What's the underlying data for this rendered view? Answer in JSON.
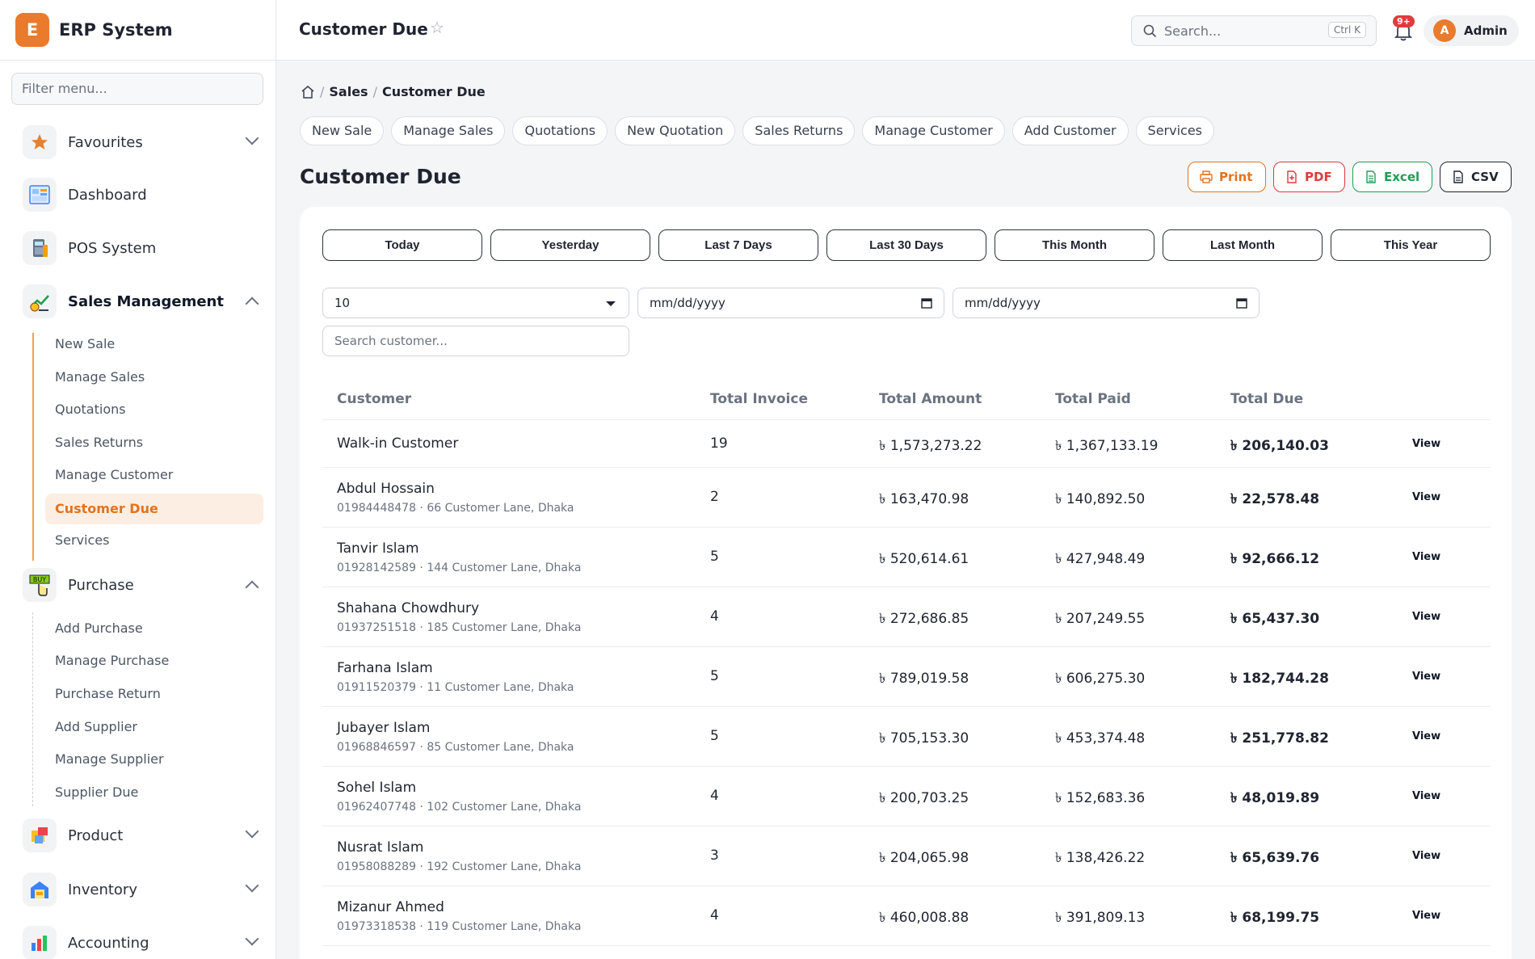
{
  "brand": {
    "logo_letter": "E",
    "name": "ERP System"
  },
  "sidebar": {
    "filter_placeholder": "Filter menu...",
    "favourites": "Favourites",
    "dashboard": "Dashboard",
    "pos": "POS System",
    "sales_management": "Sales Management",
    "sales_items": [
      "New Sale",
      "Manage Sales",
      "Quotations",
      "Sales Returns",
      "Manage Customer",
      "Customer Due",
      "Services"
    ],
    "purchase": "Purchase",
    "purchase_items": [
      "Add Purchase",
      "Manage Purchase",
      "Purchase Return",
      "Add Supplier",
      "Manage Supplier",
      "Supplier Due"
    ],
    "product": "Product",
    "inventory": "Inventory",
    "accounting": "Accounting"
  },
  "topbar": {
    "title": "Customer Due",
    "search_placeholder": "Search...",
    "shortcut": "Ctrl K",
    "notif_badge": "9+",
    "user_initial": "A",
    "user_name": "Admin"
  },
  "breadcrumb": {
    "section": "Sales",
    "current": "Customer Due"
  },
  "quick_links": [
    "New Sale",
    "Manage Sales",
    "Quotations",
    "New Quotation",
    "Sales Returns",
    "Manage Customer",
    "Add Customer",
    "Services"
  ],
  "page_title": "Customer Due",
  "export": {
    "print": "Print",
    "pdf": "PDF",
    "excel": "Excel",
    "csv": "CSV"
  },
  "ranges": [
    "Today",
    "Yesterday",
    "Last 7 Days",
    "Last 30 Days",
    "This Month",
    "Last Month",
    "This Year"
  ],
  "filters": {
    "page_size": "10",
    "date_from": "mm/dd/yyyy",
    "date_to": "mm/dd/yyyy",
    "search_placeholder": "Search customer..."
  },
  "table": {
    "headers": [
      "Customer",
      "Total Invoice",
      "Total Amount",
      "Total Paid",
      "Total Due"
    ],
    "view_label": "View",
    "rows": [
      {
        "name": "Walk-in Customer",
        "sub": "",
        "invoices": "19",
        "amount": "৳ 1,573,273.22",
        "paid": "৳ 1,367,133.19",
        "due": "৳ 206,140.03"
      },
      {
        "name": "Abdul Hossain",
        "sub": "01984448478 · 66 Customer Lane, Dhaka",
        "invoices": "2",
        "amount": "৳ 163,470.98",
        "paid": "৳ 140,892.50",
        "due": "৳ 22,578.48"
      },
      {
        "name": "Tanvir Islam",
        "sub": "01928142589 · 144 Customer Lane, Dhaka",
        "invoices": "5",
        "amount": "৳ 520,614.61",
        "paid": "৳ 427,948.49",
        "due": "৳ 92,666.12"
      },
      {
        "name": "Shahana Chowdhury",
        "sub": "01937251518 · 185 Customer Lane, Dhaka",
        "invoices": "4",
        "amount": "৳ 272,686.85",
        "paid": "৳ 207,249.55",
        "due": "৳ 65,437.30"
      },
      {
        "name": "Farhana Islam",
        "sub": "01911520379 · 11 Customer Lane, Dhaka",
        "invoices": "5",
        "amount": "৳ 789,019.58",
        "paid": "৳ 606,275.30",
        "due": "৳ 182,744.28"
      },
      {
        "name": "Jubayer Islam",
        "sub": "01968846597 · 85 Customer Lane, Dhaka",
        "invoices": "5",
        "amount": "৳ 705,153.30",
        "paid": "৳ 453,374.48",
        "due": "৳ 251,778.82"
      },
      {
        "name": "Sohel Islam",
        "sub": "01962407748 · 102 Customer Lane, Dhaka",
        "invoices": "4",
        "amount": "৳ 200,703.25",
        "paid": "৳ 152,683.36",
        "due": "৳ 48,019.89"
      },
      {
        "name": "Nusrat Islam",
        "sub": "01958088289 · 192 Customer Lane, Dhaka",
        "invoices": "3",
        "amount": "৳ 204,065.98",
        "paid": "৳ 138,426.22",
        "due": "৳ 65,639.76"
      },
      {
        "name": "Mizanur Ahmed",
        "sub": "01973318538 · 119 Customer Lane, Dhaka",
        "invoices": "4",
        "amount": "৳ 460,008.88",
        "paid": "৳ 391,809.13",
        "due": "৳ 68,199.75"
      }
    ]
  },
  "colors": {
    "accent": "#ea7a2c",
    "print": "#e2731e",
    "pdf": "#dc3b3b",
    "excel": "#1f9d55",
    "csv": "#1f2430"
  }
}
